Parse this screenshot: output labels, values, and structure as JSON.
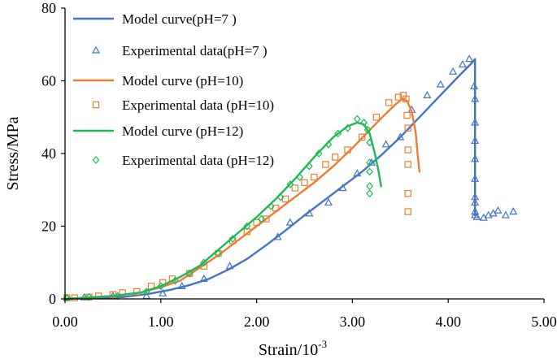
{
  "chart_data": {
    "type": "line",
    "title": "",
    "xlabel": "Strain/10",
    "xlabel_sup": "-3",
    "ylabel": "Stress/MPa",
    "xlim": [
      0,
      5
    ],
    "ylim": [
      0,
      80
    ],
    "x_ticks": [
      "0.00",
      "1.00",
      "2.00",
      "3.00",
      "4.00",
      "5.00"
    ],
    "x_tick_values": [
      0,
      1,
      2,
      3,
      4,
      5
    ],
    "y_ticks": [
      "0",
      "20",
      "40",
      "60",
      "80"
    ],
    "y_tick_values": [
      0,
      20,
      40,
      60,
      80
    ],
    "grid": false,
    "legend_position": "top-left",
    "series": [
      {
        "name": "Model curve(pH=7 )",
        "kind": "line",
        "color": "#4472C4",
        "x": [
          0,
          0.6,
          0.9,
          1.1,
          1.3,
          1.5,
          1.7,
          1.9,
          2.1,
          2.3,
          2.5,
          2.7,
          2.9,
          3.1,
          3.3,
          3.5,
          3.7,
          3.9,
          4.1,
          4.25,
          4.28,
          4.28
        ],
        "y": [
          0,
          0.5,
          1.5,
          2.5,
          3.8,
          5.5,
          8.0,
          11.0,
          14.8,
          18.8,
          23.0,
          27.0,
          31.0,
          35.0,
          39.5,
          44.5,
          50.0,
          55.5,
          61.0,
          65.0,
          66.0,
          23
        ]
      },
      {
        "name": "Experimental data(pH=7 )",
        "kind": "scatter",
        "marker": "triangle",
        "color": "#4472C4",
        "x": [
          0.02,
          0.2,
          0.5,
          0.85,
          1.02,
          1.22,
          1.45,
          1.72,
          2.22,
          2.35,
          2.55,
          2.75,
          2.9,
          3.05,
          3.2,
          3.35,
          3.5,
          3.62,
          3.78,
          3.92,
          4.05,
          4.15,
          4.22,
          4.27,
          4.28,
          4.28,
          4.28,
          4.28,
          4.28,
          4.28,
          4.28,
          4.28,
          4.28,
          4.3,
          4.37,
          4.42,
          4.47,
          4.52,
          4.6,
          4.68
        ],
        "y": [
          0.3,
          0.4,
          0.8,
          0.8,
          1.5,
          3.5,
          5.5,
          9.0,
          17.0,
          21.0,
          23.5,
          26.5,
          30.5,
          34.5,
          37.5,
          42.5,
          44.5,
          52.0,
          56.0,
          59.0,
          62.5,
          64.5,
          66.0,
          58.5,
          55.0,
          48.5,
          43.5,
          38.5,
          33.0,
          28.0,
          26.5,
          24.0,
          23.0,
          22.5,
          22.3,
          23.0,
          23.5,
          24.3,
          23.0,
          24.0
        ]
      },
      {
        "name": "Model curve (pH=10)",
        "kind": "line",
        "color": "#ED7D31",
        "x": [
          0,
          0.5,
          0.8,
          1.0,
          1.2,
          1.4,
          1.6,
          1.8,
          2.0,
          2.2,
          2.4,
          2.6,
          2.8,
          3.0,
          3.2,
          3.35,
          3.45,
          3.52,
          3.57,
          3.62,
          3.66,
          3.68,
          3.7
        ],
        "y": [
          0,
          0.8,
          1.8,
          3.2,
          5.0,
          8.5,
          12.0,
          16.0,
          20.0,
          24.0,
          28.0,
          32.0,
          36.5,
          41.5,
          47.0,
          51.0,
          53.5,
          55.0,
          54.5,
          51.5,
          46.0,
          40.0,
          35.0
        ]
      },
      {
        "name": "Experimental data (pH=10)",
        "kind": "scatter",
        "marker": "square",
        "color": "#ED7D31",
        "x": [
          0.02,
          0.1,
          0.25,
          0.35,
          0.5,
          0.6,
          0.75,
          0.9,
          1.02,
          1.12,
          1.3,
          1.45,
          1.6,
          1.75,
          1.9,
          2.0,
          2.1,
          2.2,
          2.3,
          2.4,
          2.5,
          2.6,
          2.72,
          2.82,
          2.95,
          3.1,
          3.25,
          3.38,
          3.48,
          3.53,
          3.56,
          3.57,
          3.58,
          3.58,
          3.58,
          3.58,
          3.58
        ],
        "y": [
          0.3,
          0.3,
          0.5,
          0.8,
          1.2,
          1.7,
          2.0,
          3.5,
          4.5,
          5.5,
          7.0,
          9.0,
          12.5,
          16.0,
          18.5,
          21.0,
          22.0,
          25.0,
          27.5,
          30.5,
          32.0,
          33.5,
          37.0,
          39.0,
          41.0,
          44.5,
          50.0,
          54.0,
          55.5,
          56.0,
          55.0,
          50.5,
          47.0,
          41.0,
          37.0,
          29.0,
          24.0
        ]
      },
      {
        "name": "Model curve (pH=12)",
        "kind": "line",
        "color": "#1DB954",
        "x": [
          0,
          0.5,
          0.8,
          1.0,
          1.2,
          1.4,
          1.6,
          1.8,
          2.0,
          2.2,
          2.4,
          2.6,
          2.8,
          2.95,
          3.05,
          3.12,
          3.18,
          3.23,
          3.27,
          3.3
        ],
        "y": [
          0,
          0.8,
          1.8,
          3.5,
          6.0,
          9.0,
          13.5,
          18.0,
          22.5,
          27.5,
          33.0,
          39.0,
          44.5,
          47.5,
          48.5,
          48.0,
          45.5,
          40.5,
          35.5,
          31.0
        ]
      },
      {
        "name": "Experimental data (pH=12)",
        "kind": "scatter",
        "marker": "diamond",
        "color": "#1DB954",
        "x": [
          0.02,
          0.25,
          0.55,
          0.85,
          1.0,
          1.15,
          1.3,
          1.45,
          1.6,
          1.75,
          1.9,
          2.05,
          2.15,
          2.25,
          2.35,
          2.45,
          2.55,
          2.65,
          2.75,
          2.85,
          2.95,
          3.05,
          3.12,
          3.16,
          3.18,
          3.18,
          3.18,
          3.18,
          3.18
        ],
        "y": [
          0.3,
          0.5,
          0.8,
          2.0,
          3.5,
          5.0,
          7.0,
          10.0,
          12.5,
          16.5,
          20.0,
          22.0,
          25.5,
          28.0,
          31.5,
          33.5,
          36.5,
          40.0,
          42.5,
          45.5,
          47.0,
          49.5,
          48.5,
          46.5,
          43.0,
          37.5,
          35.0,
          31.0,
          29.0
        ]
      }
    ]
  }
}
